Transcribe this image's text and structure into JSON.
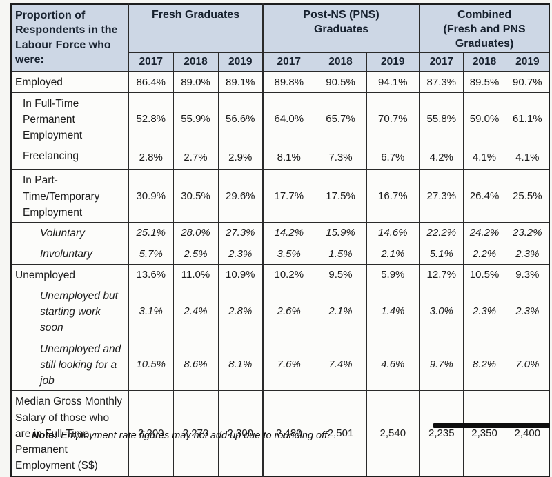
{
  "table": {
    "corner_header": "Proportion of Respondents in the Labour Force who were:",
    "groups": [
      {
        "name": "fresh-graduates",
        "label_lines": [
          "Fresh Graduates"
        ]
      },
      {
        "name": "post-ns-graduates",
        "label_lines": [
          "Post-NS (PNS)",
          "Graduates"
        ]
      },
      {
        "name": "combined-graduates",
        "label_lines": [
          "Combined",
          "(Fresh and PNS",
          "Graduates)"
        ]
      }
    ],
    "years": [
      "2017",
      "2018",
      "2019"
    ],
    "rows": [
      {
        "label": "Employed",
        "indent": 0,
        "subrow": false,
        "values": [
          "86.4%",
          "89.0%",
          "89.1%",
          "89.8%",
          "90.5%",
          "94.1%",
          "87.3%",
          "89.5%",
          "90.7%"
        ]
      },
      {
        "label": "In Full-Time Permanent Employment",
        "indent": 1,
        "subrow": false,
        "values": [
          "52.8%",
          "55.9%",
          "56.6%",
          "64.0%",
          "65.7%",
          "70.7%",
          "55.8%",
          "59.0%",
          "61.1%"
        ]
      },
      {
        "label": "Freelancing",
        "indent": 1,
        "subrow": false,
        "values": [
          "2.8%",
          "2.7%",
          "2.9%",
          "8.1%",
          "7.3%",
          "6.7%",
          "4.2%",
          "4.1%",
          "4.1%"
        ]
      },
      {
        "label": "In Part-Time/Temporary Employment",
        "indent": 1,
        "subrow": false,
        "values": [
          "30.9%",
          "30.5%",
          "29.6%",
          "17.7%",
          "17.5%",
          "16.7%",
          "27.3%",
          "26.4%",
          "25.5%"
        ]
      },
      {
        "label": "Voluntary",
        "indent": 2,
        "subrow": true,
        "values": [
          "25.1%",
          "28.0%",
          "27.3%",
          "14.2%",
          "15.9%",
          "14.6%",
          "22.2%",
          "24.2%",
          "23.2%"
        ]
      },
      {
        "label": "Involuntary",
        "indent": 2,
        "subrow": true,
        "values": [
          "5.7%",
          "2.5%",
          "2.3%",
          "3.5%",
          "1.5%",
          "2.1%",
          "5.1%",
          "2.2%",
          "2.3%"
        ]
      },
      {
        "label": "Unemployed",
        "indent": 0,
        "subrow": false,
        "values": [
          "13.6%",
          "11.0%",
          "10.9%",
          "10.2%",
          "9.5%",
          "5.9%",
          "12.7%",
          "10.5%",
          "9.3%"
        ]
      },
      {
        "label": "Unemployed but starting work soon",
        "indent": 2,
        "subrow": true,
        "values": [
          "3.1%",
          "2.4%",
          "2.8%",
          "2.6%",
          "2.1%",
          "1.4%",
          "3.0%",
          "2.3%",
          "2.3%"
        ]
      },
      {
        "label": "Unemployed and still looking for a job",
        "indent": 2,
        "subrow": true,
        "values": [
          "10.5%",
          "8.6%",
          "8.1%",
          "7.6%",
          "7.4%",
          "4.6%",
          "9.7%",
          "8.2%",
          "7.0%"
        ]
      },
      {
        "label": "Median Gross Monthly Salary of those who are in Full-Time Permanent Employment (S$)",
        "indent": 0,
        "subrow": false,
        "values": [
          "2,200",
          "2,270",
          "2,300",
          "2,480",
          "2,501",
          "2,540",
          "2,235",
          "2,350",
          "2,400"
        ]
      }
    ]
  },
  "note": {
    "label": "Note:",
    "text": "Employment rate figures may not add up due to rounding off."
  },
  "colors": {
    "header_bg": "#cdd7e5",
    "border": "#2a2a2a",
    "cell_bg": "#fcfcfa"
  }
}
